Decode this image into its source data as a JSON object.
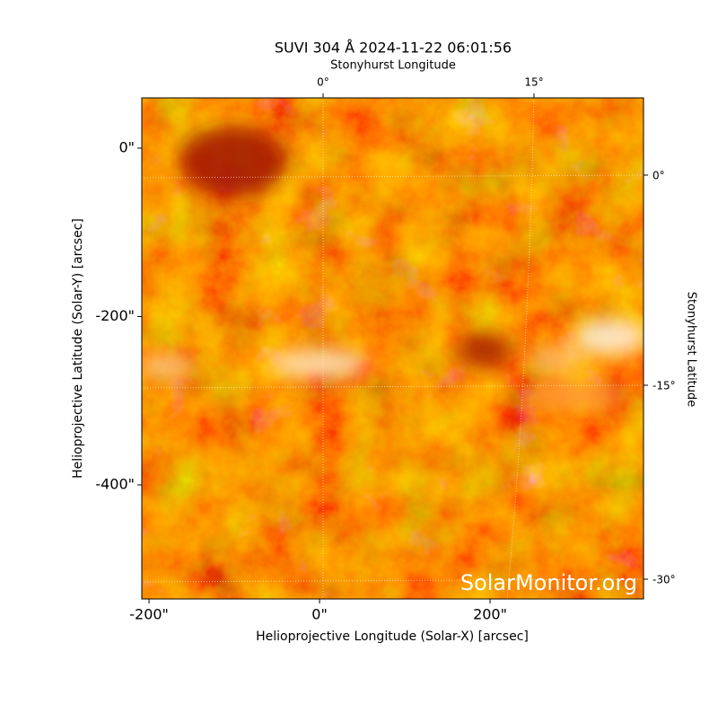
{
  "chart_data": {
    "type": "image",
    "title": "SUVI 304 Å 2024-11-22 06:01:56",
    "xlabel": "Helioprojective Longitude (Solar-X) [arcsec]",
    "ylabel": "Helioprojective Latitude (Solar-Y) [arcsec]",
    "xlim": [
      -208.5,
      380
    ],
    "ylim": [
      -535.5,
      59.7
    ],
    "xticks": [
      {
        "value": -200,
        "label": "-200\""
      },
      {
        "value": 0,
        "label": "0\""
      },
      {
        "value": 200,
        "label": "200\""
      }
    ],
    "yticks": [
      {
        "value": 0,
        "label": "0\""
      },
      {
        "value": -200,
        "label": "-200\""
      },
      {
        "value": -400,
        "label": "-400\""
      }
    ],
    "top_axis": {
      "label": "Stonyhurst Longitude",
      "ticks": [
        "0°",
        "15°"
      ]
    },
    "right_axis": {
      "label": "Stonyhurst Latitude",
      "ticks": [
        "0°",
        "-15°",
        "-30°"
      ]
    },
    "watermark": "SolarMonitor.org"
  }
}
